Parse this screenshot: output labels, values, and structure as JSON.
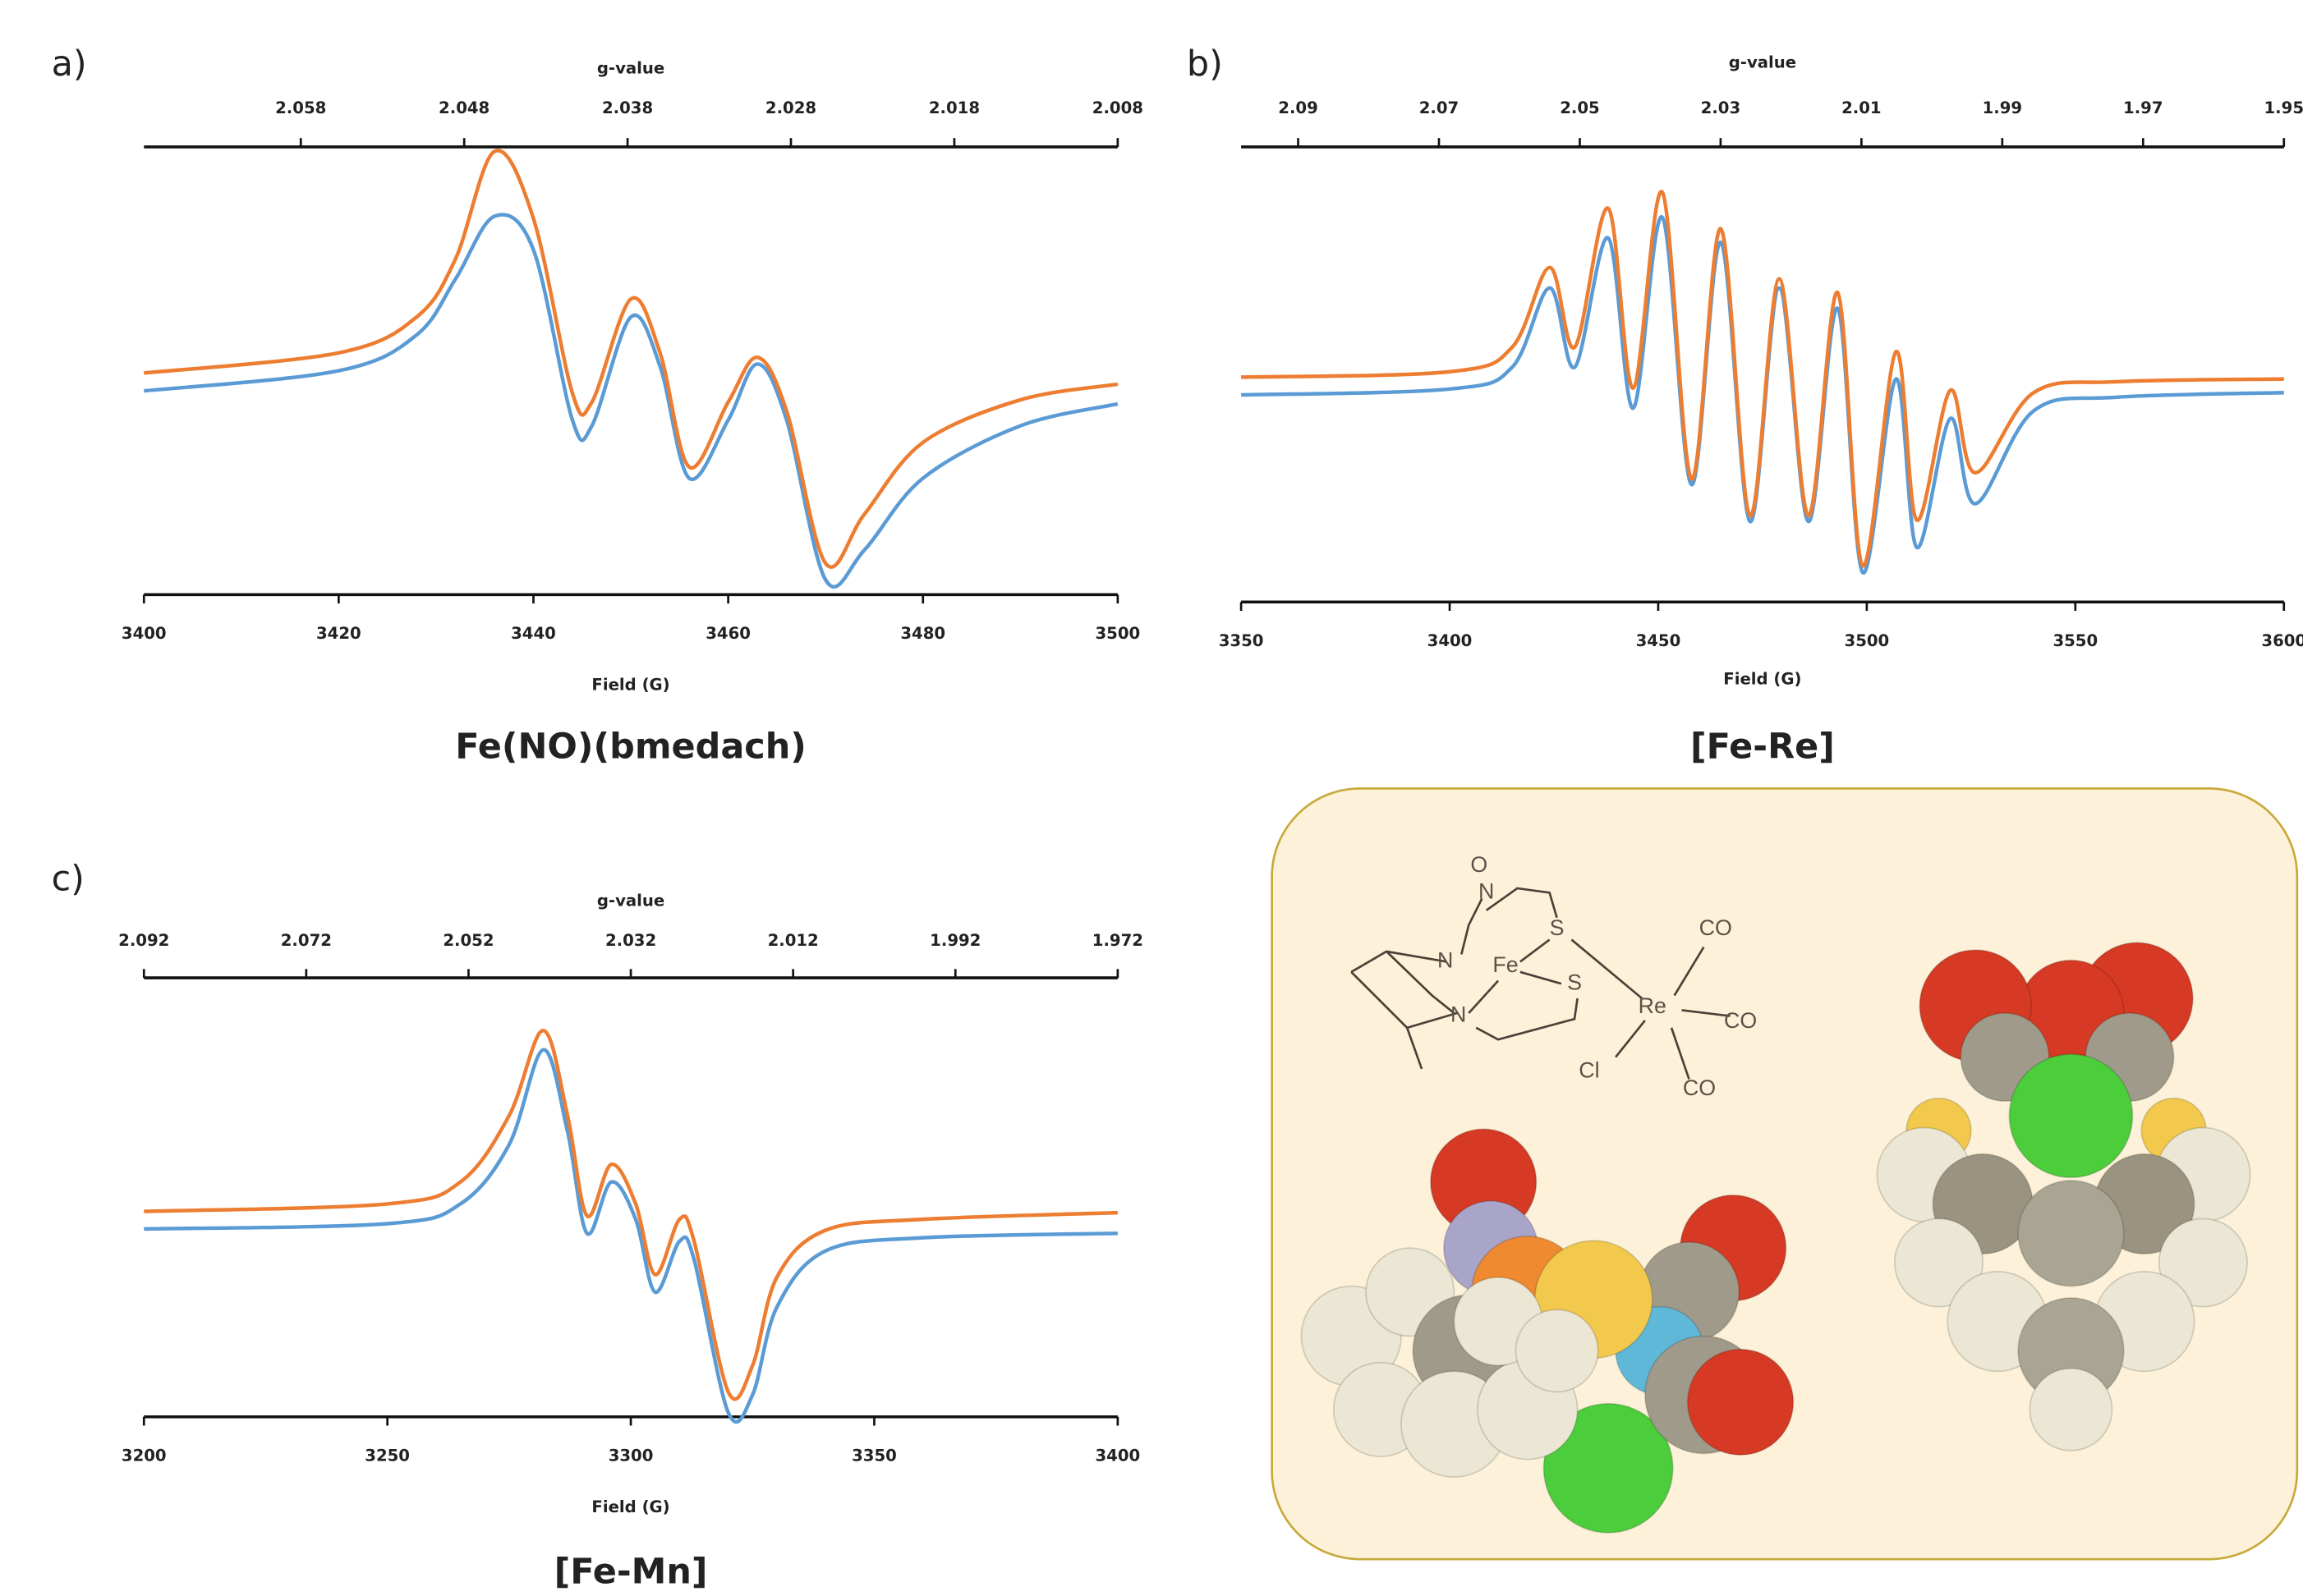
{
  "chart_data": [
    {
      "type": "line",
      "panel": "a)",
      "title": "Fe(NO)(bmedach)",
      "xlabel": "Field (G)",
      "x2label": "g-value",
      "x": [
        3400,
        3420,
        3428,
        3432,
        3436,
        3440,
        3444,
        3446,
        3450,
        3453,
        3456,
        3460,
        3463,
        3466,
        3470,
        3474,
        3480,
        3490,
        3500
      ],
      "series": [
        {
          "color": "#5b9bd5",
          "values": [
            45.5,
            50,
            58,
            70.5,
            84.5,
            77,
            39,
            37.7,
            62,
            51,
            26,
            39,
            51.5,
            39,
            3.3,
            10,
            26,
            37.7,
            42.6
          ]
        },
        {
          "color": "#ed7d31",
          "values": [
            49.5,
            54,
            62,
            75,
            99,
            84,
            45,
            43,
            66,
            54,
            28.5,
            43,
            53,
            41,
            7,
            18,
            34,
            43.5,
            47
          ]
        }
      ],
      "xlim": [
        3400,
        3500
      ],
      "xticks": [
        3400,
        3420,
        3440,
        3460,
        3480,
        3500
      ],
      "x2lim": [
        2.0676,
        2.008
      ],
      "x2ticks": [
        2.058,
        2.048,
        2.038,
        2.028,
        2.018,
        2.008
      ],
      "ylim": [
        0,
        100
      ]
    },
    {
      "type": "line",
      "panel": "b)",
      "title": "[Fe-Re]",
      "xlabel": "Field (G)",
      "x2label": "g-value",
      "x": [
        3350,
        3400,
        3415,
        3424,
        3430,
        3438,
        3444,
        3451,
        3458,
        3465,
        3472,
        3479,
        3486,
        3493,
        3499,
        3507,
        3512,
        3520,
        3526,
        3540,
        3560,
        3600
      ],
      "series": [
        {
          "color": "#5b9bd5",
          "values": [
            45.5,
            46.8,
            51.6,
            69,
            51.6,
            80,
            42.6,
            84.5,
            25.8,
            79,
            17.7,
            69,
            17.7,
            64.5,
            6.5,
            49,
            12,
            40.3,
            21.6,
            42,
            45,
            46
          ]
        },
        {
          "color": "#ed7d31",
          "values": [
            49.4,
            50.6,
            56,
            73.5,
            56,
            86.5,
            47,
            90,
            27,
            82,
            19,
            71,
            19,
            68,
            8,
            55,
            18,
            46.5,
            28.4,
            46,
            48.4,
            49
          ]
        }
      ],
      "xlim": [
        3350,
        3600
      ],
      "xticks": [
        3350,
        3400,
        3450,
        3500,
        3550,
        3600
      ],
      "x2lim": [
        2.0981,
        1.95
      ],
      "x2ticks": [
        2.09,
        2.07,
        2.05,
        2.03,
        2.01,
        1.99,
        1.97,
        1.95
      ],
      "ylim": [
        0,
        100
      ]
    },
    {
      "type": "line",
      "panel": "c)",
      "title": "[Fe-Mn]",
      "xlabel": "Field (G)",
      "x2label": "g-value",
      "x": [
        3200,
        3250,
        3265,
        3275,
        3282,
        3287,
        3291,
        3296,
        3301,
        3305,
        3310,
        3313,
        3320,
        3325,
        3330,
        3340,
        3360,
        3400
      ],
      "series": [
        {
          "color": "#5b9bd5",
          "values": [
            42.8,
            44,
            48.5,
            62,
            83.6,
            65,
            41.8,
            53.5,
            45,
            28.4,
            40,
            35.8,
            1,
            5,
            25,
            37.8,
            40.8,
            41.8
          ]
        },
        {
          "color": "#ed7d31",
          "values": [
            46.8,
            48.5,
            53.5,
            68.6,
            88,
            68.6,
            45.8,
            57.5,
            48.5,
            32.4,
            45,
            40,
            5.7,
            11.7,
            31.8,
            42.5,
            45,
            46.5
          ]
        }
      ],
      "xlim": [
        3200,
        3400
      ],
      "xticks": [
        3200,
        3250,
        3300,
        3350,
        3400
      ],
      "x2lim": [
        2.092,
        1.972
      ],
      "x2ticks": [
        2.092,
        2.072,
        2.052,
        2.032,
        2.012,
        1.992,
        1.972
      ],
      "ylim": [
        0,
        100
      ]
    }
  ],
  "structure": {
    "labels": [
      "O",
      "N",
      "S",
      "N",
      "Fe",
      "S",
      "Re",
      "CO",
      "CO",
      "CO",
      "Cl",
      "N"
    ]
  }
}
